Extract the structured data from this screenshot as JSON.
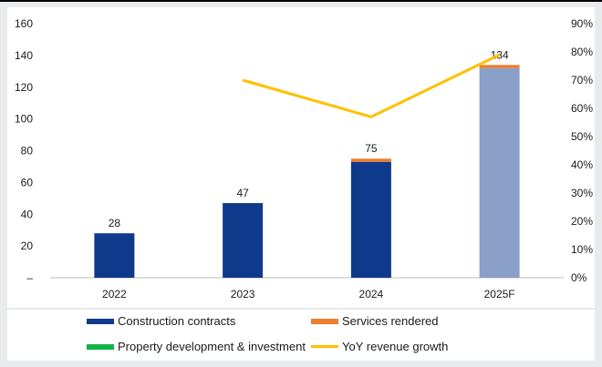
{
  "chart_data": {
    "type": "bar",
    "categories": [
      "2022",
      "2023",
      "2024",
      "2025F"
    ],
    "series": [
      {
        "name": "Construction contracts",
        "values": [
          28,
          47,
          73,
          132
        ],
        "color": "#0f3a8c",
        "forecast_color": "#8aa0c8"
      },
      {
        "name": "Services rendered",
        "values": [
          0,
          0,
          2,
          2
        ],
        "color": "#ed7d31"
      },
      {
        "name": "Property development & investment",
        "values": [
          0,
          0,
          0,
          0
        ],
        "color": "#12b24a"
      }
    ],
    "line_series": {
      "name": "YoY revenue growth",
      "values": [
        null,
        0.7,
        0.57,
        0.79
      ],
      "color": "#ffc000",
      "axis": "right"
    },
    "data_labels": [
      "28",
      "47",
      "75",
      "134"
    ],
    "y_left": {
      "ticks": [
        "–",
        "20",
        "40",
        "60",
        "80",
        "100",
        "120",
        "140",
        "160"
      ],
      "ylim": [
        0,
        160
      ]
    },
    "y_right": {
      "ticks": [
        "0%",
        "10%",
        "20%",
        "30%",
        "40%",
        "50%",
        "60%",
        "70%",
        "80%",
        "90%"
      ],
      "ylim": [
        0,
        0.9
      ]
    },
    "grid": false,
    "legend_position": "bottom"
  },
  "legend": {
    "construction": "Construction contracts",
    "services": "Services rendered",
    "property": "Property development & investment",
    "yoy": "YoY revenue growth"
  },
  "colors": {
    "plot_bg": "#ffffff",
    "outer_bg": "#e8eaec",
    "legend_bg": "#ffffff"
  }
}
